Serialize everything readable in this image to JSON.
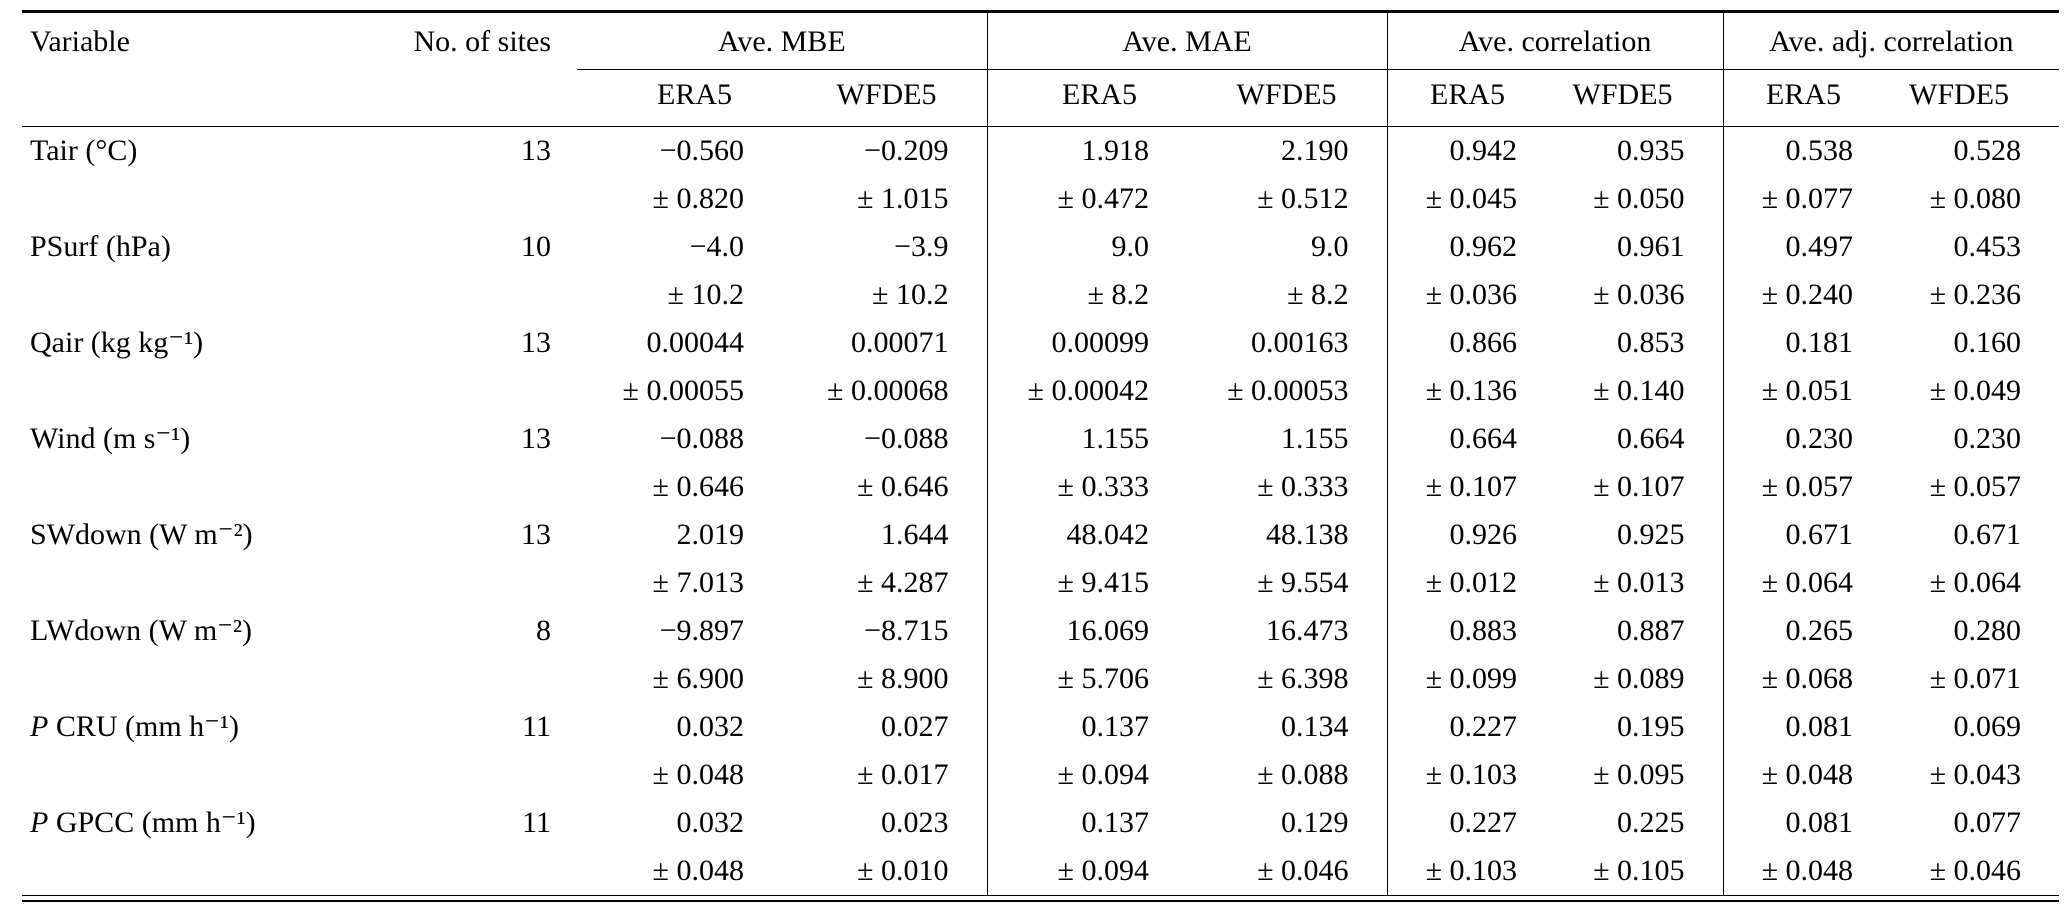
{
  "page": {
    "background": "#ffffff",
    "text_color": "#000000",
    "rule_color": "#000000"
  },
  "table": {
    "headers": {
      "variable": "Variable",
      "sites": "No. of sites",
      "groups": [
        "Ave. MBE",
        "Ave. MAE",
        "Ave. correlation",
        "Ave. adj. correlation"
      ],
      "subcolumns": [
        "ERA5",
        "WFDE5"
      ]
    },
    "rows": [
      {
        "variable": "Tair (°C)",
        "italic_first": false,
        "sites": "13",
        "means": [
          "−0.560",
          "−0.209",
          "1.918",
          "2.190",
          "0.942",
          "0.935",
          "0.538",
          "0.528"
        ],
        "stds": [
          "± 0.820",
          "± 1.015",
          "± 0.472",
          "± 0.512",
          "± 0.045",
          "± 0.050",
          "± 0.077",
          "± 0.080"
        ]
      },
      {
        "variable": "PSurf (hPa)",
        "italic_first": false,
        "sites": "10",
        "means": [
          "−4.0",
          "−3.9",
          "9.0",
          "9.0",
          "0.962",
          "0.961",
          "0.497",
          "0.453"
        ],
        "stds": [
          "± 10.2",
          "± 10.2",
          "± 8.2",
          "± 8.2",
          "± 0.036",
          "± 0.036",
          "± 0.240",
          "± 0.236"
        ]
      },
      {
        "variable": "Qair (kg kg⁻¹)",
        "italic_first": false,
        "sites": "13",
        "means": [
          "0.00044",
          "0.00071",
          "0.00099",
          "0.00163",
          "0.866",
          "0.853",
          "0.181",
          "0.160"
        ],
        "stds": [
          "± 0.00055",
          "± 0.00068",
          "± 0.00042",
          "± 0.00053",
          "± 0.136",
          "± 0.140",
          "± 0.051",
          "± 0.049"
        ]
      },
      {
        "variable": "Wind (m s⁻¹)",
        "italic_first": false,
        "sites": "13",
        "means": [
          "−0.088",
          "−0.088",
          "1.155",
          "1.155",
          "0.664",
          "0.664",
          "0.230",
          "0.230"
        ],
        "stds": [
          "± 0.646",
          "± 0.646",
          "± 0.333",
          "± 0.333",
          "± 0.107",
          "± 0.107",
          "± 0.057",
          "± 0.057"
        ]
      },
      {
        "variable": "SWdown (W m⁻²)",
        "italic_first": false,
        "sites": "13",
        "means": [
          "2.019",
          "1.644",
          "48.042",
          "48.138",
          "0.926",
          "0.925",
          "0.671",
          "0.671"
        ],
        "stds": [
          "± 7.013",
          "± 4.287",
          "± 9.415",
          "± 9.554",
          "± 0.012",
          "± 0.013",
          "± 0.064",
          "± 0.064"
        ]
      },
      {
        "variable": "LWdown (W m⁻²)",
        "italic_first": false,
        "sites": "8",
        "means": [
          "−9.897",
          "−8.715",
          "16.069",
          "16.473",
          "0.883",
          "0.887",
          "0.265",
          "0.280"
        ],
        "stds": [
          "± 6.900",
          "± 8.900",
          "± 5.706",
          "± 6.398",
          "± 0.099",
          "± 0.089",
          "± 0.068",
          "± 0.071"
        ]
      },
      {
        "variable": "P CRU (mm h⁻¹)",
        "italic_first": true,
        "sites": "11",
        "means": [
          "0.032",
          "0.027",
          "0.137",
          "0.134",
          "0.227",
          "0.195",
          "0.081",
          "0.069"
        ],
        "stds": [
          "± 0.048",
          "± 0.017",
          "± 0.094",
          "± 0.088",
          "± 0.103",
          "± 0.095",
          "± 0.048",
          "± 0.043"
        ]
      },
      {
        "variable": "P GPCC (mm h⁻¹)",
        "italic_first": true,
        "sites": "11",
        "means": [
          "0.032",
          "0.023",
          "0.137",
          "0.129",
          "0.227",
          "0.225",
          "0.081",
          "0.077"
        ],
        "stds": [
          "± 0.048",
          "± 0.010",
          "± 0.094",
          "± 0.046",
          "± 0.103",
          "± 0.105",
          "± 0.048",
          "± 0.046"
        ]
      }
    ]
  }
}
